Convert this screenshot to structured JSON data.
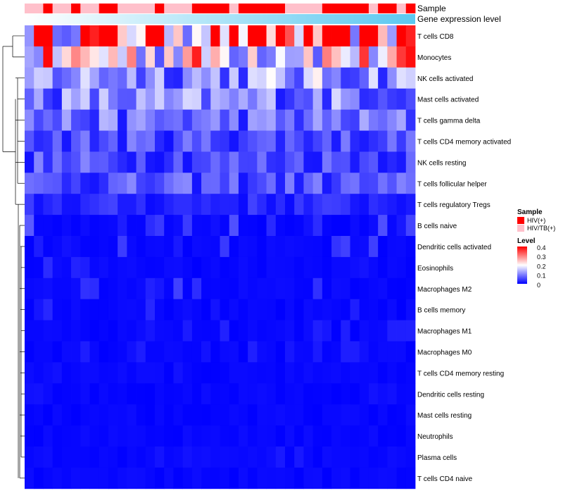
{
  "chart_data": {
    "type": "heatmap",
    "annotation_labels": {
      "sample": "Sample",
      "gene_expression": "Gene expression level"
    },
    "rows": [
      "T cells CD8",
      "Monocytes",
      "NK cells activated",
      "Mast cells activated",
      "T cells gamma delta",
      "T cells CD4 memory activated",
      "NK cells resting",
      "T cells follicular helper",
      "T cells regulatory  Tregs",
      "B cells naive",
      "Dendritic cells activated",
      "Eosinophils",
      "Macrophages M2",
      "B cells memory",
      "Macrophages M1",
      "Macrophages M0",
      "T cells CD4 memory resting",
      "Dendritic cells resting",
      "Mast cells resting",
      "Neutrophils",
      "Plasma cells",
      "T cells CD4 naive"
    ],
    "row_means": [
      0.33,
      0.22,
      0.12,
      0.1,
      0.08,
      0.06,
      0.06,
      0.06,
      0.03,
      0.04,
      0.03,
      0.02,
      0.03,
      0.02,
      0.015,
      0.015,
      0.008,
      0.008,
      0.004,
      0.004,
      0.012,
      0.006
    ],
    "n_samples": 42,
    "sample_groups": [
      "HIV/TB(+)",
      "HIV/TB(+)",
      "HIV(+)",
      "HIV/TB(+)",
      "HIV/TB(+)",
      "HIV(+)",
      "HIV/TB(+)",
      "HIV/TB(+)",
      "HIV(+)",
      "HIV(+)",
      "HIV/TB(+)",
      "HIV/TB(+)",
      "HIV/TB(+)",
      "HIV/TB(+)",
      "HIV(+)",
      "HIV/TB(+)",
      "HIV/TB(+)",
      "HIV/TB(+)",
      "HIV(+)",
      "HIV(+)",
      "HIV(+)",
      "HIV(+)",
      "HIV/TB(+)",
      "HIV(+)",
      "HIV(+)",
      "HIV(+)",
      "HIV(+)",
      "HIV(+)",
      "HIV/TB(+)",
      "HIV/TB(+)",
      "HIV/TB(+)",
      "HIV/TB(+)",
      "HIV(+)",
      "HIV(+)",
      "HIV(+)",
      "HIV(+)",
      "HIV(+)",
      "HIV/TB(+)",
      "HIV(+)",
      "HIV(+)",
      "HIV/TB(+)",
      "HIV(+)"
    ],
    "legend": {
      "sample_title": "Sample",
      "sample_entries": [
        {
          "label": "HIV(+)",
          "color": "#ff0000"
        },
        {
          "label": "HIV/TB(+)",
          "color": "#ffc0cb"
        }
      ],
      "level_title": "Level",
      "level_ticks": [
        "0.4",
        "0.3",
        "0.2",
        "0.1",
        "0"
      ]
    },
    "colors": {
      "low": "#0000ff",
      "mid": "#ffffff",
      "high": "#ff0000",
      "gene_band_start": "#ffffff",
      "gene_band_end": "#5bc8f0"
    },
    "value_range": [
      0,
      0.4
    ]
  }
}
